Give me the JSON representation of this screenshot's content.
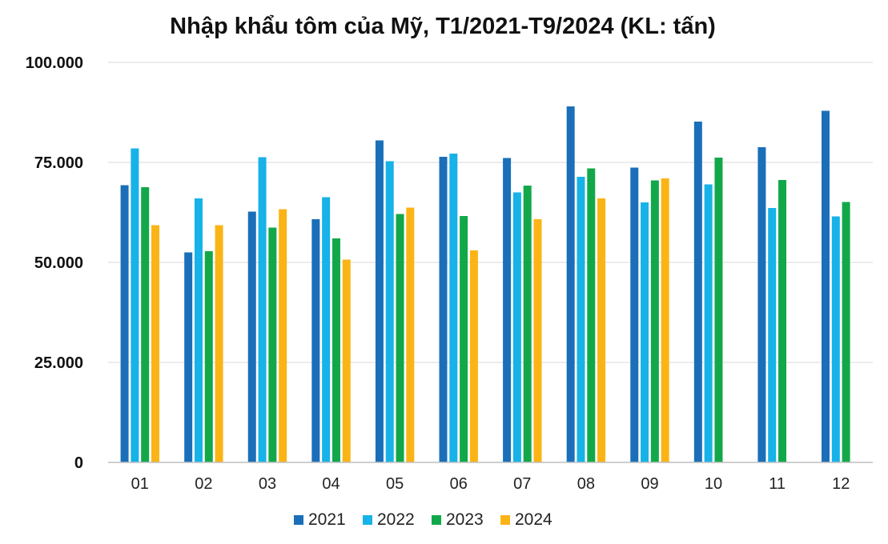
{
  "chart_data": {
    "type": "bar",
    "title": "Nhập khẩu tôm của Mỹ, T1/2021-T9/2024 (KL: tấn)",
    "xlabel": "",
    "ylabel": "",
    "ylim": [
      0,
      100000
    ],
    "yticks": [
      0,
      25000,
      50000,
      75000,
      100000
    ],
    "ytick_labels": [
      "0",
      "25.000",
      "50.000",
      "75.000",
      "100.000"
    ],
    "grid": true,
    "legend_position": "bottom",
    "categories": [
      "01",
      "02",
      "03",
      "04",
      "05",
      "06",
      "07",
      "08",
      "09",
      "10",
      "11",
      "12"
    ],
    "series": [
      {
        "name": "2021",
        "color": "#1a6fb8",
        "values": [
          69300,
          52500,
          62700,
          60800,
          80500,
          76400,
          76100,
          89000,
          73700,
          85200,
          78800,
          87900
        ]
      },
      {
        "name": "2022",
        "color": "#17b2e8",
        "values": [
          78500,
          66000,
          76300,
          66300,
          75300,
          77200,
          67500,
          71400,
          65000,
          69500,
          63600,
          61500
        ]
      },
      {
        "name": "2023",
        "color": "#12a84a",
        "values": [
          68800,
          52800,
          58700,
          56000,
          62100,
          61600,
          69200,
          73500,
          70500,
          76200,
          70600,
          65100
        ]
      },
      {
        "name": "2024",
        "color": "#fbb416",
        "values": [
          59300,
          59300,
          63300,
          50700,
          63700,
          53000,
          60800,
          66000,
          71000,
          null,
          null,
          null
        ]
      }
    ]
  }
}
